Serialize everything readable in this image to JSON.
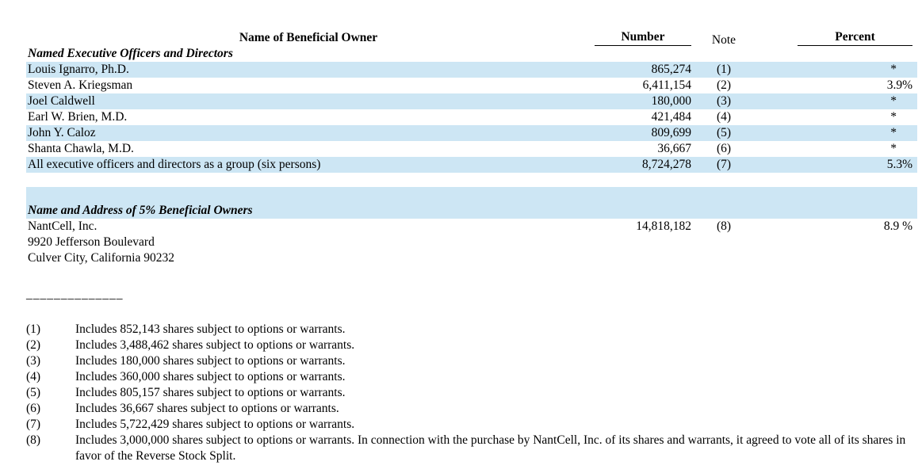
{
  "colors": {
    "row_highlight": "#cde6f4",
    "rule_color": "#000000"
  },
  "table": {
    "headers": {
      "name": "Name of Beneficial Owner",
      "number": "Number",
      "note": "Note",
      "percent": "Percent"
    },
    "section_officers_title": "Named Executive Officers and Directors",
    "rows": [
      {
        "name": "Louis Ignarro, Ph.D.",
        "number": "865,274",
        "note": "(1)",
        "percent": "*"
      },
      {
        "name": "Steven A. Kriegsman",
        "number": "6,411,154",
        "note": "(2)",
        "percent": "3.9%"
      },
      {
        "name": "Joel Caldwell",
        "number": "180,000",
        "note": "(3)",
        "percent": "*"
      },
      {
        "name": "Earl W. Brien, M.D.",
        "number": "421,484",
        "note": "(4)",
        "percent": "*"
      },
      {
        "name": "John Y. Caloz",
        "number": "809,699",
        "note": "(5)",
        "percent": "*"
      },
      {
        "name": "Shanta Chawla, M.D.",
        "number": "36,667",
        "note": "(6)",
        "percent": "*"
      },
      {
        "name": "All executive officers and directors as a group (six persons)",
        "number": "8,724,278",
        "note": "(7)",
        "percent": "5.3%"
      }
    ],
    "section_5pct_title": "Name and Address of 5% Beneficial Owners",
    "owner_5pct": {
      "name": "NantCell, Inc.",
      "number": "14,818,182",
      "note": "(8)",
      "percent": "8.9 %",
      "address_line1": "9920 Jefferson Boulevard",
      "address_line2": "Culver City, California 90232"
    }
  },
  "separator": "______________",
  "footnotes": [
    {
      "marker": "(1)",
      "text": "Includes 852,143 shares subject to options or warrants."
    },
    {
      "marker": "(2)",
      "text": "Includes 3,488,462 shares subject to options or warrants."
    },
    {
      "marker": "(3)",
      "text": "Includes 180,000 shares subject to options or warrants."
    },
    {
      "marker": "(4)",
      "text": "Includes 360,000 shares subject to options or warrants."
    },
    {
      "marker": "(5)",
      "text": "Includes 805,157 shares subject to options or warrants."
    },
    {
      "marker": "(6)",
      "text": "Includes 36,667 shares subject to options or warrants."
    },
    {
      "marker": "(7)",
      "text": "Includes 5,722,429 shares subject to options or warrants."
    },
    {
      "marker": "(8)",
      "text": "Includes 3,000,000 shares subject to options or warrants.  In connection with the purchase by NantCell, Inc. of its shares and warrants, it agreed to vote all of its shares in favor of the Reverse Stock Split."
    }
  ]
}
